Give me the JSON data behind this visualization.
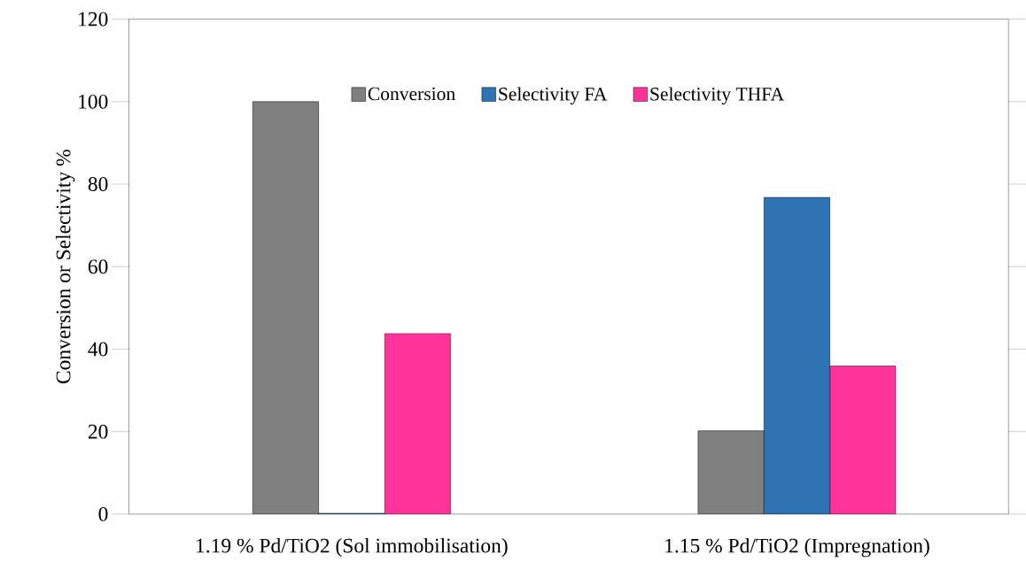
{
  "chart_data": {
    "type": "bar",
    "ylabel": "Conversion or Selectivity %",
    "categories": [
      "1.19 % Pd/TiO2 (Sol immobilisation)",
      "1.15 % Pd/TiO2 (Impregnation)"
    ],
    "series": [
      {
        "name": "Conversion",
        "color": "#808080",
        "values": [
          100,
          20.2
        ]
      },
      {
        "name": "Selectivity FA",
        "color": "#2e74b5",
        "values": [
          0.2,
          76.8
        ]
      },
      {
        "name": "Selectivity THFA",
        "color": "#ff3399",
        "values": [
          43.8,
          35.9
        ]
      }
    ],
    "ylim": [
      0,
      120
    ],
    "yticks": [
      0,
      20,
      40,
      60,
      80,
      100,
      120
    ],
    "grid": false,
    "legend": "top"
  }
}
